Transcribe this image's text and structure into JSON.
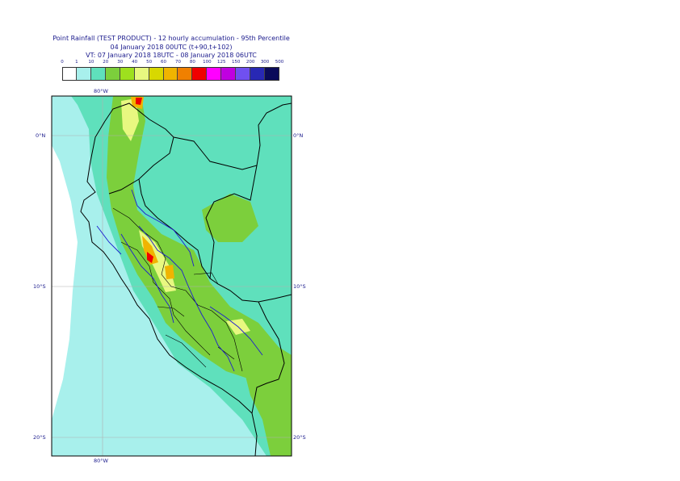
{
  "title": {
    "line1": "Point Rainfall (TEST PRODUCT) - 12 hourly accumulation - 95th Percentile",
    "line2": "04 January 2018 00UTC (t+90,t+102)",
    "line3": "VT: 07 January 2018 18UTC - 08 January 2018 06UTC"
  },
  "colorbar": {
    "labels": [
      "0",
      "1",
      "10",
      "20",
      "30",
      "40",
      "50",
      "60",
      "70",
      "80",
      "100",
      "125",
      "150",
      "200",
      "300",
      "500"
    ],
    "colors": [
      "#ffffff",
      "#a8f0ec",
      "#5fe0bc",
      "#7ccf3c",
      "#9ee01e",
      "#e8f880",
      "#d8d800",
      "#f0b400",
      "#f08000",
      "#f00000",
      "#ff00ff",
      "#c000e0",
      "#7050f0",
      "#2828b4",
      "#0a0a5a"
    ]
  },
  "axes": {
    "top_lon": "80°W",
    "bottom_lon": "80°W",
    "lat_labels": [
      "0°N",
      "10°S",
      "20°S"
    ]
  },
  "colors": {
    "boundary": "#000000",
    "rivers": "#1c1cd0",
    "gridline": "#b0b0b0",
    "text": "#1a1a8c"
  }
}
